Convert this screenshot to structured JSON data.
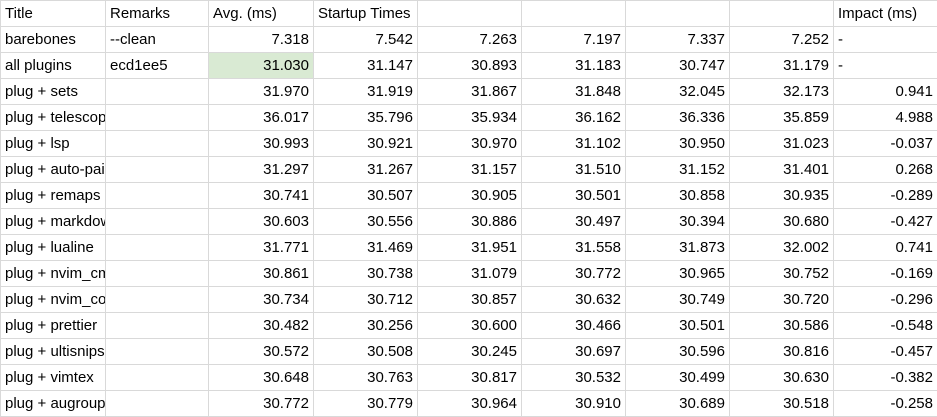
{
  "header": {
    "title": "Title",
    "remarks": "Remarks",
    "avg": "Avg. (ms)",
    "startup": "Startup Times",
    "impact": "Impact (ms)"
  },
  "highlight_color": "#d9ead3",
  "rows": [
    {
      "title": "barebones",
      "remarks": "--clean",
      "avg": "7.318",
      "times": [
        "7.542",
        "7.263",
        "7.197",
        "7.337",
        "7.252"
      ],
      "impact": "-"
    },
    {
      "title": "all plugins",
      "remarks": "ecd1ee5",
      "avg": "31.030",
      "times": [
        "31.147",
        "30.893",
        "31.183",
        "30.747",
        "31.179"
      ],
      "impact": "-"
    },
    {
      "title": "plug + sets",
      "remarks": "",
      "avg": "31.970",
      "times": [
        "31.919",
        "31.867",
        "31.848",
        "32.045",
        "32.173"
      ],
      "impact": "0.941"
    },
    {
      "title": "plug + telescope",
      "remarks": "",
      "avg": "36.017",
      "times": [
        "35.796",
        "35.934",
        "36.162",
        "36.336",
        "35.859"
      ],
      "impact": "4.988"
    },
    {
      "title": "plug + lsp",
      "remarks": "",
      "avg": "30.993",
      "times": [
        "30.921",
        "30.970",
        "31.102",
        "30.950",
        "31.023"
      ],
      "impact": "-0.037"
    },
    {
      "title": "plug + auto-pairs",
      "remarks": "",
      "avg": "31.297",
      "times": [
        "31.267",
        "31.157",
        "31.510",
        "31.152",
        "31.401"
      ],
      "impact": "0.268"
    },
    {
      "title": "plug + remaps",
      "remarks": "",
      "avg": "30.741",
      "times": [
        "30.507",
        "30.905",
        "30.501",
        "30.858",
        "30.935"
      ],
      "impact": "-0.289"
    },
    {
      "title": "plug + markdown preview",
      "remarks": "",
      "avg": "30.603",
      "times": [
        "30.556",
        "30.886",
        "30.497",
        "30.394",
        "30.680"
      ],
      "impact": "-0.427"
    },
    {
      "title": "plug + lualine",
      "remarks": "",
      "avg": "31.771",
      "times": [
        "31.469",
        "31.951",
        "31.558",
        "31.873",
        "32.002"
      ],
      "impact": "0.741"
    },
    {
      "title": "plug + nvim_cmp",
      "remarks": "",
      "avg": "30.861",
      "times": [
        "30.738",
        "31.079",
        "30.772",
        "30.965",
        "30.752"
      ],
      "impact": "-0.169"
    },
    {
      "title": "plug + nvim_comment",
      "remarks": "",
      "avg": "30.734",
      "times": [
        "30.712",
        "30.857",
        "30.632",
        "30.749",
        "30.720"
      ],
      "impact": "-0.296"
    },
    {
      "title": "plug + prettier",
      "remarks": "",
      "avg": "30.482",
      "times": [
        "30.256",
        "30.600",
        "30.466",
        "30.501",
        "30.586"
      ],
      "impact": "-0.548"
    },
    {
      "title": "plug + ultisnips",
      "remarks": "",
      "avg": "30.572",
      "times": [
        "30.508",
        "30.245",
        "30.697",
        "30.596",
        "30.816"
      ],
      "impact": "-0.457"
    },
    {
      "title": "plug + vimtex",
      "remarks": "",
      "avg": "30.648",
      "times": [
        "30.763",
        "30.817",
        "30.532",
        "30.499",
        "30.630"
      ],
      "impact": "-0.382"
    },
    {
      "title": "plug + augroups",
      "remarks": "",
      "avg": "30.772",
      "times": [
        "30.779",
        "30.964",
        "30.910",
        "30.689",
        "30.518"
      ],
      "impact": "-0.258"
    }
  ]
}
